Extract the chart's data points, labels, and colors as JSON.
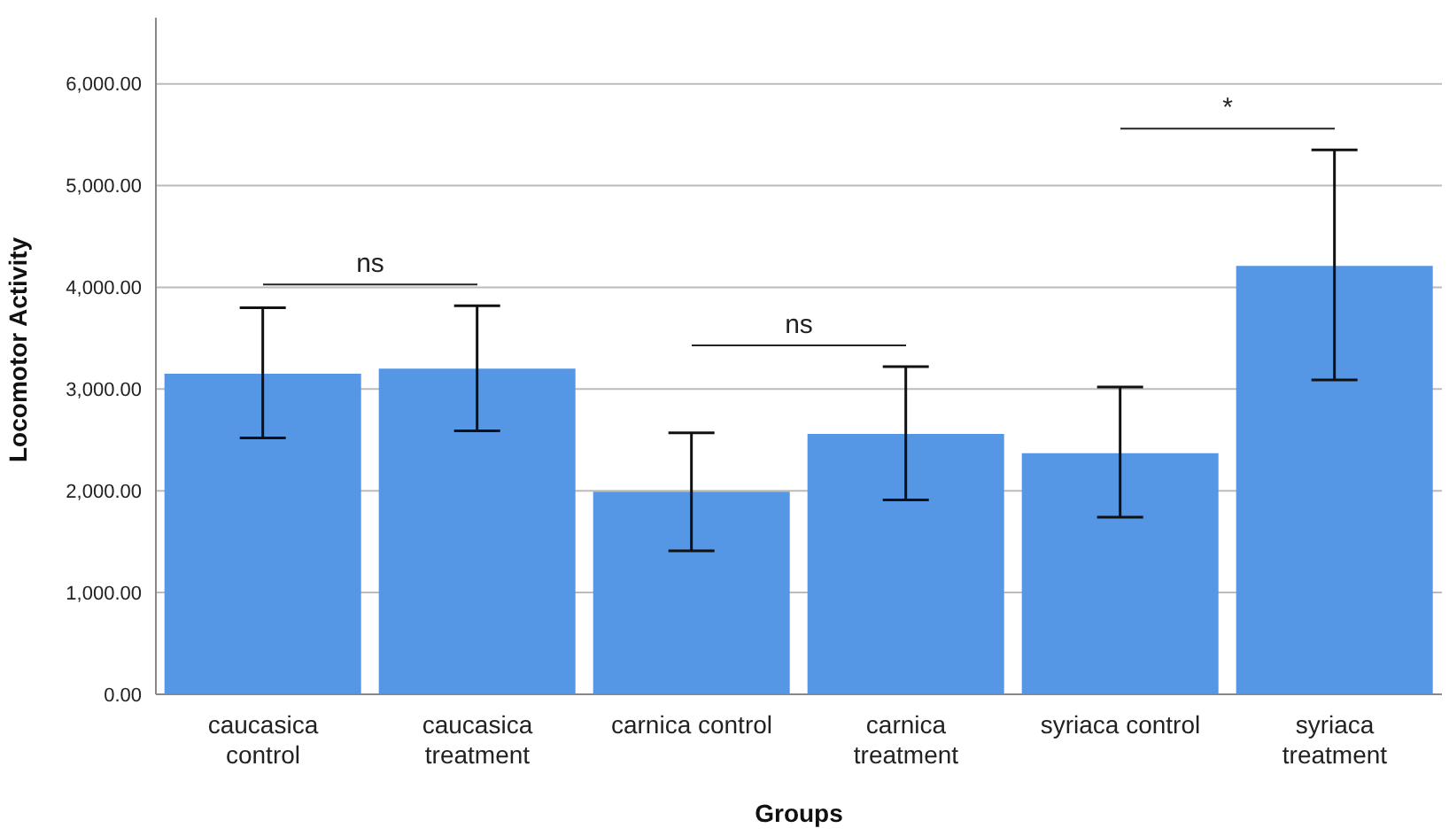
{
  "chart_data": {
    "type": "bar",
    "xlabel": "Groups",
    "ylabel": "Locomotor Activity",
    "categories": [
      "caucasica control",
      "caucasica treatment",
      "carnica control",
      "carnica treatment",
      "syriaca control",
      "syriaca treatment"
    ],
    "values": [
      3150,
      3200,
      1990,
      2560,
      2370,
      4210
    ],
    "errors": [
      [
        2520,
        3800
      ],
      [
        2590,
        3820
      ],
      [
        1410,
        2570
      ],
      [
        1910,
        3220
      ],
      [
        1740,
        3020
      ],
      [
        3090,
        5350
      ]
    ],
    "color": "#5596e5",
    "ylim": [
      0,
      6650
    ],
    "yticks": [
      {
        "value": 0,
        "label": "0.00"
      },
      {
        "value": 1000,
        "label": "1,000.00"
      },
      {
        "value": 2000,
        "label": "2,000.00"
      },
      {
        "value": 3000,
        "label": "3,000.00"
      },
      {
        "value": 4000,
        "label": "4,000.00"
      },
      {
        "value": 5000,
        "label": "5,000.00"
      },
      {
        "value": 6000,
        "label": "6,000.00"
      }
    ],
    "grid": "y",
    "legend": false,
    "annotations": [
      "ns",
      "ns",
      "*"
    ]
  }
}
